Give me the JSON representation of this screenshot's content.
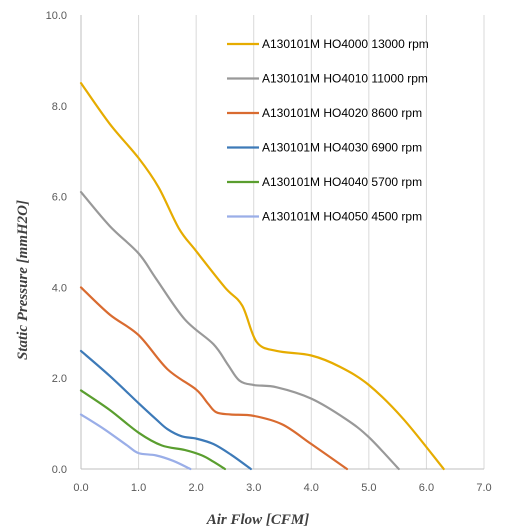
{
  "chart_data": {
    "type": "line",
    "title": "",
    "xlabel": "Air Flow [CFM]",
    "ylabel": "Static Pressure [mmH2O]",
    "xlim": [
      0,
      7
    ],
    "ylim": [
      0,
      10
    ],
    "x_ticks": [
      "0.0",
      "1.0",
      "2.0",
      "3.0",
      "4.0",
      "5.0",
      "6.0",
      "7.0"
    ],
    "y_ticks": [
      "0.0",
      "2.0",
      "4.0",
      "6.0",
      "8.0",
      "10.0"
    ],
    "grid": "vertical",
    "legend_position": "top-right",
    "series": [
      {
        "name": "A130101M HO4000 13000 rpm",
        "color": "#e6ac00",
        "x": [
          0.0,
          0.5,
          1.0,
          1.35,
          1.7,
          2.0,
          2.5,
          2.8,
          3.05,
          3.4,
          4.0,
          4.5,
          5.0,
          5.6,
          6.3
        ],
        "y": [
          8.5,
          7.6,
          6.85,
          6.2,
          5.3,
          4.8,
          4.0,
          3.6,
          2.8,
          2.6,
          2.5,
          2.25,
          1.85,
          1.1,
          0.0
        ]
      },
      {
        "name": "A130101M HO4010 11000 rpm",
        "color": "#999999",
        "x": [
          0.0,
          0.5,
          1.0,
          1.3,
          1.8,
          2.3,
          2.55,
          2.75,
          3.0,
          3.4,
          4.0,
          4.6,
          5.0,
          5.52
        ],
        "y": [
          6.1,
          5.35,
          4.75,
          4.2,
          3.3,
          2.75,
          2.3,
          1.95,
          1.85,
          1.8,
          1.55,
          1.1,
          0.7,
          0.0
        ]
      },
      {
        "name": "A130101M HO4020 8600 rpm",
        "color": "#d96b30",
        "x": [
          0.0,
          0.5,
          1.0,
          1.5,
          2.0,
          2.2,
          2.35,
          2.6,
          3.0,
          3.5,
          4.0,
          4.62
        ],
        "y": [
          4.0,
          3.4,
          2.95,
          2.2,
          1.75,
          1.45,
          1.25,
          1.2,
          1.17,
          0.98,
          0.55,
          0.0
        ]
      },
      {
        "name": "A130101M HO4030 6900 rpm",
        "color": "#3d7ab8",
        "x": [
          0.0,
          0.5,
          1.0,
          1.3,
          1.5,
          1.75,
          2.0,
          2.3,
          2.6,
          2.95
        ],
        "y": [
          2.6,
          2.05,
          1.45,
          1.1,
          0.88,
          0.72,
          0.67,
          0.55,
          0.32,
          0.0
        ]
      },
      {
        "name": "A130101M HO4040 5700 rpm",
        "color": "#5a9e2f",
        "x": [
          0.0,
          0.5,
          1.0,
          1.4,
          1.8,
          2.1,
          2.3,
          2.5
        ],
        "y": [
          1.73,
          1.3,
          0.8,
          0.52,
          0.42,
          0.3,
          0.16,
          0.0
        ]
      },
      {
        "name": "A130101M HO4050 4500 rpm",
        "color": "#9aaee8",
        "x": [
          0.0,
          0.4,
          0.8,
          1.0,
          1.3,
          1.6,
          1.9
        ],
        "y": [
          1.2,
          0.88,
          0.52,
          0.35,
          0.3,
          0.18,
          0.0
        ]
      }
    ]
  }
}
